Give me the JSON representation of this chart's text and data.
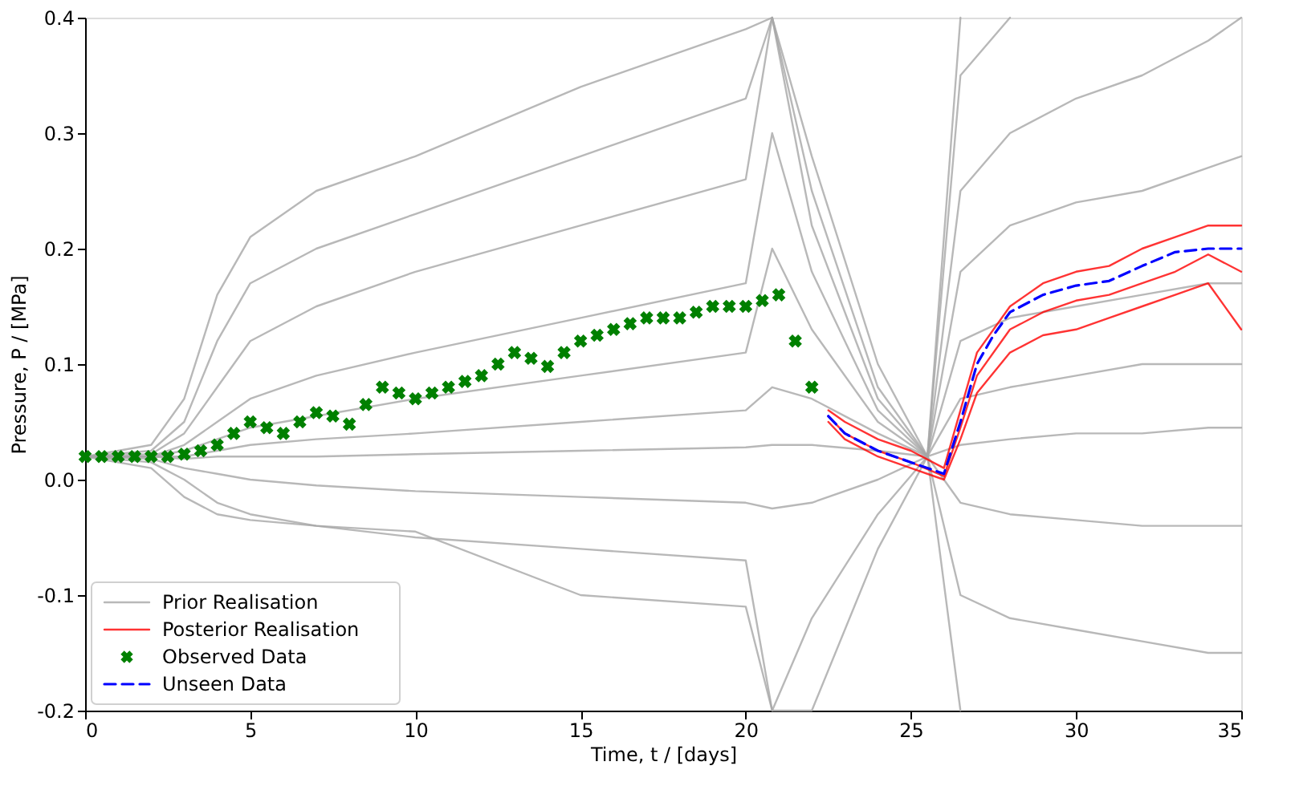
{
  "chart_data": {
    "type": "line",
    "xlabel": "Time, t / [days]",
    "ylabel": "Pressure, P / [MPa]",
    "xlim": [
      0,
      35
    ],
    "xticks": [
      0,
      5,
      10,
      15,
      20,
      25,
      30,
      35
    ],
    "ylim": [
      -0.2,
      0.4
    ],
    "yticks": [
      -0.2,
      -0.1,
      {
        "value": 0,
        "label": "0.0"
      },
      0.1,
      0.2,
      0.3,
      0.4
    ],
    "grid": false,
    "legend": "bottom left",
    "series": [
      {
        "name": "Prior Realisation",
        "color": "#a6a6a6",
        "x": [
          0,
          2,
          3,
          4,
          5,
          7,
          10,
          15,
          20,
          20.8,
          22,
          24,
          25.5,
          26.5
        ],
        "values": [
          0.02,
          0.03,
          0.07,
          0.16,
          0.21,
          0.25,
          0.28,
          0.34,
          0.39,
          0.4,
          0.28,
          0.1,
          0.02,
          0.4
        ]
      },
      {
        "color": "#a6a6a6",
        "x": [
          0,
          2,
          3,
          4,
          5,
          7,
          10,
          15,
          20,
          20.8,
          22,
          24,
          25.5,
          26.5,
          28
        ],
        "values": [
          0.02,
          0.025,
          0.05,
          0.12,
          0.17,
          0.2,
          0.23,
          0.28,
          0.33,
          0.4,
          0.25,
          0.08,
          0.02,
          0.35,
          0.4
        ]
      },
      {
        "color": "#a6a6a6",
        "x": [
          0,
          2,
          3,
          4,
          5,
          7,
          10,
          15,
          20,
          20.8,
          22,
          24,
          25.5,
          26.5,
          28,
          30,
          32,
          34,
          35
        ],
        "values": [
          0.02,
          0.022,
          0.04,
          0.08,
          0.12,
          0.15,
          0.18,
          0.22,
          0.26,
          0.4,
          0.22,
          0.07,
          0.02,
          0.25,
          0.3,
          0.33,
          0.35,
          0.38,
          0.4
        ]
      },
      {
        "color": "#a6a6a6",
        "x": [
          0,
          2,
          3,
          4,
          5,
          7,
          10,
          15,
          20,
          20.8,
          22,
          24,
          25.5,
          26.5,
          28,
          30,
          32,
          34,
          35
        ],
        "values": [
          0.02,
          0.02,
          0.03,
          0.05,
          0.07,
          0.09,
          0.11,
          0.14,
          0.17,
          0.3,
          0.18,
          0.06,
          0.02,
          0.18,
          0.22,
          0.24,
          0.25,
          0.27,
          0.28
        ]
      },
      {
        "color": "#a6a6a6",
        "x": [
          0,
          2,
          3,
          4,
          5,
          7,
          10,
          15,
          20,
          20.8,
          22,
          24,
          25.5,
          26.5,
          28,
          30,
          32,
          34,
          35
        ],
        "values": [
          0.02,
          0.02,
          0.025,
          0.035,
          0.045,
          0.055,
          0.07,
          0.09,
          0.11,
          0.2,
          0.13,
          0.05,
          0.02,
          0.12,
          0.14,
          0.15,
          0.16,
          0.17,
          0.17
        ]
      },
      {
        "color": "#a6a6a6",
        "x": [
          0,
          2,
          3,
          4,
          5,
          7,
          10,
          15,
          20,
          20.8,
          22,
          24,
          25.5,
          26.5,
          28,
          30,
          32,
          34,
          35
        ],
        "values": [
          0.02,
          0.02,
          0.02,
          0.025,
          0.03,
          0.035,
          0.04,
          0.05,
          0.06,
          0.08,
          0.07,
          0.04,
          0.02,
          0.07,
          0.08,
          0.09,
          0.1,
          0.1,
          0.1
        ]
      },
      {
        "color": "#a6a6a6",
        "x": [
          0,
          2,
          3,
          4,
          5,
          7,
          10,
          15,
          20,
          20.8,
          22,
          24,
          25.5,
          26.5,
          28,
          30,
          32,
          34,
          35
        ],
        "values": [
          0.02,
          0.02,
          0.018,
          0.02,
          0.02,
          0.02,
          0.022,
          0.025,
          0.028,
          0.03,
          0.03,
          0.025,
          0.02,
          0.03,
          0.035,
          0.04,
          0.04,
          0.045,
          0.045
        ]
      },
      {
        "color": "#a6a6a6",
        "x": [
          0,
          2,
          3,
          4,
          5,
          7,
          10,
          15,
          20,
          20.8,
          22,
          24,
          25.5,
          26.5,
          28,
          30,
          32,
          34,
          35
        ],
        "values": [
          0.02,
          0.018,
          0.01,
          0.005,
          0,
          -0.005,
          -0.01,
          -0.015,
          -0.02,
          -0.025,
          -0.02,
          0,
          0.02,
          -0.02,
          -0.03,
          -0.035,
          -0.04,
          -0.04,
          -0.04
        ]
      },
      {
        "color": "#a6a6a6",
        "x": [
          0,
          2,
          3,
          4,
          5,
          7,
          10,
          15,
          20,
          20.8,
          22,
          24,
          25.5,
          26.5,
          28,
          30,
          32,
          34,
          35
        ],
        "values": [
          0.02,
          0.015,
          0,
          -0.02,
          -0.03,
          -0.04,
          -0.05,
          -0.06,
          -0.07,
          -0.2,
          -0.12,
          -0.03,
          0.02,
          -0.1,
          -0.12,
          -0.13,
          -0.14,
          -0.15,
          -0.15
        ]
      },
      {
        "color": "#a6a6a6",
        "x": [
          0,
          2,
          3,
          4,
          5,
          7,
          10,
          15,
          20,
          20.8,
          22,
          24,
          25.5,
          26.5
        ],
        "values": [
          0.02,
          0.01,
          -0.015,
          -0.03,
          -0.035,
          -0.04,
          -0.045,
          -0.1,
          -0.11,
          -0.2,
          -0.2,
          -0.06,
          0.02,
          -0.2
        ]
      },
      {
        "name": "Posterior Realisation",
        "color": "#ff0000",
        "x": [
          22.5,
          23,
          24,
          25,
          26,
          26.5,
          27,
          28,
          29,
          30,
          31,
          32,
          33,
          34,
          35
        ],
        "values": [
          0.06,
          0.05,
          0.035,
          0.025,
          0.01,
          0.06,
          0.11,
          0.15,
          0.17,
          0.18,
          0.185,
          0.2,
          0.21,
          0.22,
          0.22
        ]
      },
      {
        "color": "#ff0000",
        "x": [
          22.5,
          23,
          24,
          25,
          26,
          26.5,
          27,
          28,
          29,
          30,
          31,
          32,
          33,
          34,
          35
        ],
        "values": [
          0.055,
          0.04,
          0.025,
          0.015,
          0.003,
          0.045,
          0.09,
          0.13,
          0.145,
          0.155,
          0.16,
          0.17,
          0.18,
          0.195,
          0.18
        ]
      },
      {
        "color": "#ff0000",
        "x": [
          22.5,
          23,
          24,
          25,
          26,
          26.5,
          27,
          28,
          29,
          30,
          31,
          32,
          33,
          34,
          35
        ],
        "values": [
          0.05,
          0.035,
          0.02,
          0.01,
          0,
          0.035,
          0.075,
          0.11,
          0.125,
          0.13,
          0.14,
          0.15,
          0.16,
          0.17,
          0.13
        ]
      },
      {
        "name": "Observed Data",
        "type": "scatter",
        "marker": "cross",
        "color": "#008000",
        "x": [
          0,
          0.5,
          1,
          1.5,
          2,
          2.5,
          3,
          3.5,
          4,
          4.5,
          5,
          5.5,
          6,
          6.5,
          7,
          7.5,
          8,
          8.5,
          9,
          9.5,
          10,
          10.5,
          11,
          11.5,
          12,
          12.5,
          13,
          13.5,
          14,
          14.5,
          15,
          15.5,
          16,
          16.5,
          17,
          17.5,
          18,
          18.5,
          19,
          19.5,
          20,
          20.5,
          21,
          21.5,
          22
        ],
        "values": [
          0.02,
          0.02,
          0.02,
          0.02,
          0.02,
          0.02,
          0.022,
          0.025,
          0.03,
          0.04,
          0.05,
          0.045,
          0.04,
          0.05,
          0.058,
          0.055,
          0.048,
          0.065,
          0.08,
          0.075,
          0.07,
          0.075,
          0.08,
          0.085,
          0.09,
          0.1,
          0.11,
          0.105,
          0.098,
          0.11,
          0.12,
          0.125,
          0.13,
          0.135,
          0.14,
          0.14,
          0.14,
          0.145,
          0.15,
          0.15,
          0.15,
          0.155,
          0.16,
          0.12,
          0.08
        ]
      },
      {
        "name": "Unseen Data",
        "line_style": "dashed",
        "color": "#0000ff",
        "x": [
          22.5,
          23,
          24,
          25,
          26,
          26.5,
          27,
          27.5,
          28,
          29,
          30,
          31,
          32,
          33,
          34,
          35
        ],
        "values": [
          0.055,
          0.04,
          0.025,
          0.015,
          0.005,
          0.05,
          0.1,
          0.125,
          0.145,
          0.16,
          0.168,
          0.172,
          0.185,
          0.197,
          0.2,
          0.2
        ]
      }
    ]
  }
}
